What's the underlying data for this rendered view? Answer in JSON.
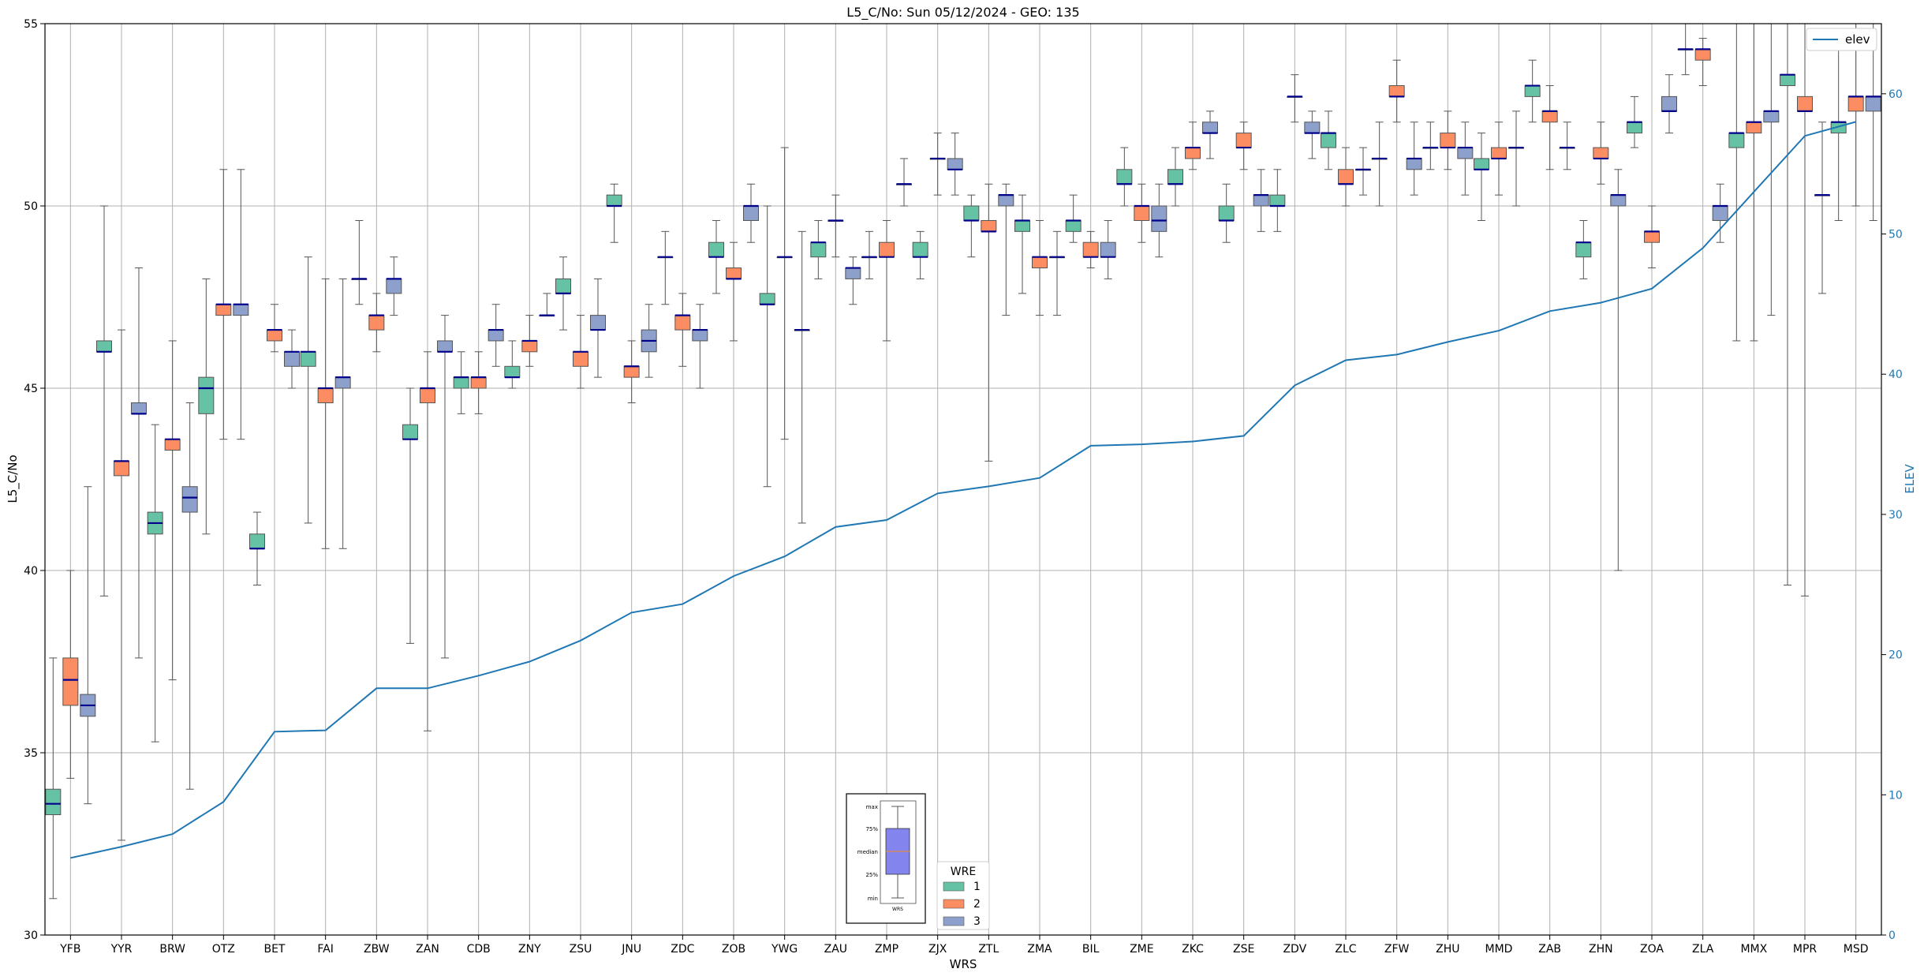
{
  "chart_data": {
    "type": "box",
    "title": "L5_C/No: Sun 05/12/2024 - GEO: 135",
    "xlabel": "WRS",
    "ylabel": "L5_C/No",
    "y2label": "ELEV",
    "ylim": [
      30,
      55
    ],
    "y2lim": [
      0,
      65
    ],
    "yticks": [
      30,
      35,
      40,
      45,
      50,
      55
    ],
    "y2ticks": [
      0,
      10,
      20,
      30,
      40,
      50,
      60
    ],
    "grid": true,
    "categories": [
      "YFB",
      "YYR",
      "BRW",
      "OTZ",
      "BET",
      "FAI",
      "ZBW",
      "ZAN",
      "CDB",
      "ZNY",
      "ZSU",
      "JNU",
      "ZDC",
      "ZOB",
      "YWG",
      "ZAU",
      "ZMP",
      "ZJX",
      "ZTL",
      "ZMA",
      "BIL",
      "ZME",
      "ZKC",
      "ZSE",
      "ZDV",
      "ZLC",
      "ZFW",
      "ZHU",
      "MMD",
      "ZAB",
      "ZHN",
      "ZOA",
      "ZLA",
      "MMX",
      "MPR",
      "MSD"
    ],
    "series_colors": {
      "1": "#66c2a5",
      "2": "#fc8d62",
      "3": "#8da0cb"
    },
    "legend": {
      "title": "WRE",
      "entries": [
        {
          "label": "1",
          "color": "#66c2a5"
        },
        {
          "label": "2",
          "color": "#fc8d62"
        },
        {
          "label": "3",
          "color": "#8da0cb"
        }
      ],
      "placement": "bottom-center"
    },
    "line_legend": {
      "label": "elev",
      "color": "#1f77b4",
      "placement": "top-right"
    },
    "key": {
      "labels": [
        "max",
        "75%",
        "median",
        "25%",
        "min"
      ],
      "xlabel": "WRS"
    },
    "elev": [
      5.5,
      6.3,
      7.2,
      9.5,
      14.5,
      14.6,
      17.6,
      17.6,
      18.5,
      19.5,
      21.0,
      23.0,
      23.6,
      25.6,
      27.0,
      29.1,
      29.6,
      31.5,
      32.0,
      32.6,
      34.9,
      35.0,
      35.2,
      35.6,
      39.2,
      41.0,
      41.4,
      42.3,
      43.1,
      44.5,
      45.1,
      46.1,
      49.0,
      53.0,
      57.0,
      58.0
    ],
    "boxes": [
      {
        "site": "YFB",
        "wre": 1,
        "min": 31.0,
        "q1": 33.3,
        "med": 33.6,
        "q3": 34.0,
        "max": 37.6
      },
      {
        "site": "YFB",
        "wre": 2,
        "min": 34.3,
        "q1": 36.3,
        "med": 37.0,
        "q3": 37.6,
        "max": 40.0
      },
      {
        "site": "YFB",
        "wre": 3,
        "min": 33.6,
        "q1": 36.0,
        "med": 36.3,
        "q3": 36.6,
        "max": 42.3
      },
      {
        "site": "YYR",
        "wre": 1,
        "min": 39.3,
        "q1": 46.0,
        "med": 46.0,
        "q3": 46.3,
        "max": 50.0
      },
      {
        "site": "YYR",
        "wre": 2,
        "min": 32.6,
        "q1": 42.6,
        "med": 43.0,
        "q3": 43.0,
        "max": 46.6
      },
      {
        "site": "YYR",
        "wre": 3,
        "min": 37.6,
        "q1": 44.3,
        "med": 44.3,
        "q3": 44.6,
        "max": 48.3
      },
      {
        "site": "BRW",
        "wre": 1,
        "min": 35.3,
        "q1": 41.0,
        "med": 41.3,
        "q3": 41.6,
        "max": 44.0
      },
      {
        "site": "BRW",
        "wre": 2,
        "min": 37.0,
        "q1": 43.3,
        "med": 43.6,
        "q3": 43.6,
        "max": 46.3
      },
      {
        "site": "BRW",
        "wre": 3,
        "min": 34.0,
        "q1": 41.6,
        "med": 42.0,
        "q3": 42.3,
        "max": 44.6
      },
      {
        "site": "OTZ",
        "wre": 1,
        "min": 41.0,
        "q1": 44.3,
        "med": 45.0,
        "q3": 45.3,
        "max": 48.0
      },
      {
        "site": "OTZ",
        "wre": 2,
        "min": 43.6,
        "q1": 47.0,
        "med": 47.3,
        "q3": 47.3,
        "max": 51.0
      },
      {
        "site": "OTZ",
        "wre": 3,
        "min": 43.6,
        "q1": 47.0,
        "med": 47.3,
        "q3": 47.3,
        "max": 51.0
      },
      {
        "site": "BET",
        "wre": 1,
        "min": 39.6,
        "q1": 40.6,
        "med": 40.6,
        "q3": 41.0,
        "max": 41.6
      },
      {
        "site": "BET",
        "wre": 2,
        "min": 46.0,
        "q1": 46.3,
        "med": 46.6,
        "q3": 46.6,
        "max": 47.3
      },
      {
        "site": "BET",
        "wre": 3,
        "min": 45.0,
        "q1": 45.6,
        "med": 46.0,
        "q3": 46.0,
        "max": 46.6
      },
      {
        "site": "FAI",
        "wre": 1,
        "min": 41.3,
        "q1": 45.6,
        "med": 46.0,
        "q3": 46.0,
        "max": 48.6
      },
      {
        "site": "FAI",
        "wre": 2,
        "min": 40.6,
        "q1": 44.6,
        "med": 45.0,
        "q3": 45.0,
        "max": 48.0
      },
      {
        "site": "FAI",
        "wre": 3,
        "min": 40.6,
        "q1": 45.0,
        "med": 45.3,
        "q3": 45.3,
        "max": 48.0
      },
      {
        "site": "ZBW",
        "wre": 1,
        "min": 47.3,
        "q1": 48.0,
        "med": 48.0,
        "q3": 48.0,
        "max": 49.6
      },
      {
        "site": "ZBW",
        "wre": 2,
        "min": 46.0,
        "q1": 46.6,
        "med": 47.0,
        "q3": 47.0,
        "max": 47.6
      },
      {
        "site": "ZBW",
        "wre": 3,
        "min": 47.0,
        "q1": 47.6,
        "med": 48.0,
        "q3": 48.0,
        "max": 48.6
      },
      {
        "site": "ZAN",
        "wre": 1,
        "min": 38.0,
        "q1": 43.6,
        "med": 43.6,
        "q3": 44.0,
        "max": 45.0
      },
      {
        "site": "ZAN",
        "wre": 2,
        "min": 35.6,
        "q1": 44.6,
        "med": 45.0,
        "q3": 45.0,
        "max": 46.0
      },
      {
        "site": "ZAN",
        "wre": 3,
        "min": 37.6,
        "q1": 46.0,
        "med": 46.0,
        "q3": 46.3,
        "max": 47.0
      },
      {
        "site": "CDB",
        "wre": 1,
        "min": 44.3,
        "q1": 45.0,
        "med": 45.3,
        "q3": 45.3,
        "max": 46.0
      },
      {
        "site": "CDB",
        "wre": 2,
        "min": 44.3,
        "q1": 45.0,
        "med": 45.3,
        "q3": 45.3,
        "max": 46.0
      },
      {
        "site": "CDB",
        "wre": 3,
        "min": 45.6,
        "q1": 46.3,
        "med": 46.6,
        "q3": 46.6,
        "max": 47.3
      },
      {
        "site": "ZNY",
        "wre": 1,
        "min": 45.0,
        "q1": 45.3,
        "med": 45.3,
        "q3": 45.6,
        "max": 46.3
      },
      {
        "site": "ZNY",
        "wre": 2,
        "min": 45.6,
        "q1": 46.0,
        "med": 46.3,
        "q3": 46.3,
        "max": 47.0
      },
      {
        "site": "ZNY",
        "wre": 3,
        "min": 47.0,
        "q1": 47.0,
        "med": 47.0,
        "q3": 47.0,
        "max": 47.6
      },
      {
        "site": "ZSU",
        "wre": 1,
        "min": 46.6,
        "q1": 47.6,
        "med": 47.6,
        "q3": 48.0,
        "max": 48.6
      },
      {
        "site": "ZSU",
        "wre": 2,
        "min": 45.0,
        "q1": 45.6,
        "med": 46.0,
        "q3": 46.0,
        "max": 47.0
      },
      {
        "site": "ZSU",
        "wre": 3,
        "min": 45.3,
        "q1": 46.6,
        "med": 46.6,
        "q3": 47.0,
        "max": 48.0
      },
      {
        "site": "JNU",
        "wre": 1,
        "min": 49.0,
        "q1": 50.0,
        "med": 50.0,
        "q3": 50.3,
        "max": 50.6
      },
      {
        "site": "JNU",
        "wre": 2,
        "min": 44.6,
        "q1": 45.3,
        "med": 45.6,
        "q3": 45.6,
        "max": 46.3
      },
      {
        "site": "JNU",
        "wre": 3,
        "min": 45.3,
        "q1": 46.0,
        "med": 46.3,
        "q3": 46.6,
        "max": 47.3
      },
      {
        "site": "ZDC",
        "wre": 1,
        "min": 47.3,
        "q1": 48.6,
        "med": 48.6,
        "q3": 48.6,
        "max": 49.3
      },
      {
        "site": "ZDC",
        "wre": 2,
        "min": 45.6,
        "q1": 46.6,
        "med": 47.0,
        "q3": 47.0,
        "max": 47.6
      },
      {
        "site": "ZDC",
        "wre": 3,
        "min": 45.0,
        "q1": 46.3,
        "med": 46.6,
        "q3": 46.6,
        "max": 47.3
      },
      {
        "site": "ZOB",
        "wre": 1,
        "min": 47.6,
        "q1": 48.6,
        "med": 48.6,
        "q3": 49.0,
        "max": 49.6
      },
      {
        "site": "ZOB",
        "wre": 2,
        "min": 46.3,
        "q1": 48.0,
        "med": 48.0,
        "q3": 48.3,
        "max": 49.0
      },
      {
        "site": "ZOB",
        "wre": 3,
        "min": 49.0,
        "q1": 49.6,
        "med": 50.0,
        "q3": 50.0,
        "max": 50.6
      },
      {
        "site": "YWG",
        "wre": 1,
        "min": 42.3,
        "q1": 47.3,
        "med": 47.3,
        "q3": 47.6,
        "max": 50.0
      },
      {
        "site": "YWG",
        "wre": 2,
        "min": 43.6,
        "q1": 48.6,
        "med": 48.6,
        "q3": 48.6,
        "max": 51.6
      },
      {
        "site": "YWG",
        "wre": 3,
        "min": 41.3,
        "q1": 46.6,
        "med": 46.6,
        "q3": 46.6,
        "max": 49.3
      },
      {
        "site": "ZAU",
        "wre": 1,
        "min": 48.0,
        "q1": 48.6,
        "med": 49.0,
        "q3": 49.0,
        "max": 49.6
      },
      {
        "site": "ZAU",
        "wre": 2,
        "min": 48.6,
        "q1": 49.6,
        "med": 49.6,
        "q3": 49.6,
        "max": 50.3
      },
      {
        "site": "ZAU",
        "wre": 3,
        "min": 47.3,
        "q1": 48.0,
        "med": 48.3,
        "q3": 48.3,
        "max": 48.6
      },
      {
        "site": "ZMP",
        "wre": 1,
        "min": 48.0,
        "q1": 48.6,
        "med": 48.6,
        "q3": 48.6,
        "max": 49.3
      },
      {
        "site": "ZMP",
        "wre": 2,
        "min": 46.3,
        "q1": 48.6,
        "med": 48.6,
        "q3": 49.0,
        "max": 49.6
      },
      {
        "site": "ZMP",
        "wre": 3,
        "min": 50.0,
        "q1": 50.6,
        "med": 50.6,
        "q3": 50.6,
        "max": 51.3
      },
      {
        "site": "ZJX",
        "wre": 1,
        "min": 48.0,
        "q1": 48.6,
        "med": 48.6,
        "q3": 49.0,
        "max": 49.3
      },
      {
        "site": "ZJX",
        "wre": 2,
        "min": 50.3,
        "q1": 51.3,
        "med": 51.3,
        "q3": 51.3,
        "max": 52.0
      },
      {
        "site": "ZJX",
        "wre": 3,
        "min": 50.3,
        "q1": 51.0,
        "med": 51.0,
        "q3": 51.3,
        "max": 52.0
      },
      {
        "site": "ZTL",
        "wre": 1,
        "min": 48.6,
        "q1": 49.6,
        "med": 49.6,
        "q3": 50.0,
        "max": 50.3
      },
      {
        "site": "ZTL",
        "wre": 2,
        "min": 43.0,
        "q1": 49.3,
        "med": 49.3,
        "q3": 49.6,
        "max": 50.6
      },
      {
        "site": "ZTL",
        "wre": 3,
        "min": 47.0,
        "q1": 50.0,
        "med": 50.3,
        "q3": 50.3,
        "max": 50.6
      },
      {
        "site": "ZMA",
        "wre": 1,
        "min": 47.6,
        "q1": 49.3,
        "med": 49.6,
        "q3": 49.6,
        "max": 50.3
      },
      {
        "site": "ZMA",
        "wre": 2,
        "min": 47.0,
        "q1": 48.3,
        "med": 48.6,
        "q3": 48.6,
        "max": 49.6
      },
      {
        "site": "ZMA",
        "wre": 3,
        "min": 47.0,
        "q1": 48.6,
        "med": 48.6,
        "q3": 48.6,
        "max": 49.3
      },
      {
        "site": "BIL",
        "wre": 1,
        "min": 49.0,
        "q1": 49.3,
        "med": 49.6,
        "q3": 49.6,
        "max": 50.3
      },
      {
        "site": "BIL",
        "wre": 2,
        "min": 48.3,
        "q1": 48.6,
        "med": 48.6,
        "q3": 49.0,
        "max": 49.3
      },
      {
        "site": "BIL",
        "wre": 3,
        "min": 48.0,
        "q1": 48.6,
        "med": 48.6,
        "q3": 49.0,
        "max": 49.6
      },
      {
        "site": "ZME",
        "wre": 1,
        "min": 50.0,
        "q1": 50.6,
        "med": 50.6,
        "q3": 51.0,
        "max": 51.6
      },
      {
        "site": "ZME",
        "wre": 2,
        "min": 49.0,
        "q1": 49.6,
        "med": 50.0,
        "q3": 50.0,
        "max": 50.6
      },
      {
        "site": "ZME",
        "wre": 3,
        "min": 48.6,
        "q1": 49.3,
        "med": 49.6,
        "q3": 50.0,
        "max": 50.6
      },
      {
        "site": "ZKC",
        "wre": 1,
        "min": 50.0,
        "q1": 50.6,
        "med": 50.6,
        "q3": 51.0,
        "max": 51.6
      },
      {
        "site": "ZKC",
        "wre": 2,
        "min": 51.0,
        "q1": 51.3,
        "med": 51.6,
        "q3": 51.6,
        "max": 52.3
      },
      {
        "site": "ZKC",
        "wre": 3,
        "min": 51.3,
        "q1": 52.0,
        "med": 52.0,
        "q3": 52.3,
        "max": 52.6
      },
      {
        "site": "ZSE",
        "wre": 1,
        "min": 49.0,
        "q1": 49.6,
        "med": 49.6,
        "q3": 50.0,
        "max": 50.6
      },
      {
        "site": "ZSE",
        "wre": 2,
        "min": 51.0,
        "q1": 51.6,
        "med": 51.6,
        "q3": 52.0,
        "max": 52.3
      },
      {
        "site": "ZSE",
        "wre": 3,
        "min": 49.3,
        "q1": 50.0,
        "med": 50.3,
        "q3": 50.3,
        "max": 51.0
      },
      {
        "site": "ZDV",
        "wre": 1,
        "min": 49.3,
        "q1": 50.0,
        "med": 50.0,
        "q3": 50.3,
        "max": 51.0
      },
      {
        "site": "ZDV",
        "wre": 2,
        "min": 52.3,
        "q1": 53.0,
        "med": 53.0,
        "q3": 53.0,
        "max": 53.6
      },
      {
        "site": "ZDV",
        "wre": 3,
        "min": 51.3,
        "q1": 52.0,
        "med": 52.0,
        "q3": 52.3,
        "max": 52.6
      },
      {
        "site": "ZLC",
        "wre": 1,
        "min": 51.0,
        "q1": 51.6,
        "med": 52.0,
        "q3": 52.0,
        "max": 52.6
      },
      {
        "site": "ZLC",
        "wre": 2,
        "min": 50.0,
        "q1": 50.6,
        "med": 50.6,
        "q3": 51.0,
        "max": 51.6
      },
      {
        "site": "ZLC",
        "wre": 3,
        "min": 50.3,
        "q1": 51.0,
        "med": 51.0,
        "q3": 51.0,
        "max": 51.6
      },
      {
        "site": "ZFW",
        "wre": 1,
        "min": 50.0,
        "q1": 51.3,
        "med": 51.3,
        "q3": 51.3,
        "max": 52.3
      },
      {
        "site": "ZFW",
        "wre": 2,
        "min": 52.3,
        "q1": 53.0,
        "med": 53.0,
        "q3": 53.3,
        "max": 54.0
      },
      {
        "site": "ZFW",
        "wre": 3,
        "min": 50.3,
        "q1": 51.0,
        "med": 51.3,
        "q3": 51.3,
        "max": 52.3
      },
      {
        "site": "ZHU",
        "wre": 1,
        "min": 51.0,
        "q1": 51.6,
        "med": 51.6,
        "q3": 51.6,
        "max": 52.3
      },
      {
        "site": "ZHU",
        "wre": 2,
        "min": 51.0,
        "q1": 51.6,
        "med": 51.6,
        "q3": 52.0,
        "max": 52.6
      },
      {
        "site": "ZHU",
        "wre": 3,
        "min": 50.3,
        "q1": 51.3,
        "med": 51.6,
        "q3": 51.6,
        "max": 52.3
      },
      {
        "site": "MMD",
        "wre": 1,
        "min": 49.6,
        "q1": 51.0,
        "med": 51.0,
        "q3": 51.3,
        "max": 52.0
      },
      {
        "site": "MMD",
        "wre": 2,
        "min": 50.3,
        "q1": 51.3,
        "med": 51.3,
        "q3": 51.6,
        "max": 52.3
      },
      {
        "site": "MMD",
        "wre": 3,
        "min": 50.0,
        "q1": 51.6,
        "med": 51.6,
        "q3": 51.6,
        "max": 52.6
      },
      {
        "site": "ZAB",
        "wre": 1,
        "min": 52.3,
        "q1": 53.0,
        "med": 53.3,
        "q3": 53.3,
        "max": 54.0
      },
      {
        "site": "ZAB",
        "wre": 2,
        "min": 51.0,
        "q1": 52.3,
        "med": 52.6,
        "q3": 52.6,
        "max": 53.3
      },
      {
        "site": "ZAB",
        "wre": 3,
        "min": 51.0,
        "q1": 51.6,
        "med": 51.6,
        "q3": 51.6,
        "max": 52.3
      },
      {
        "site": "ZHN",
        "wre": 1,
        "min": 48.0,
        "q1": 48.6,
        "med": 49.0,
        "q3": 49.0,
        "max": 49.6
      },
      {
        "site": "ZHN",
        "wre": 2,
        "min": 50.6,
        "q1": 51.3,
        "med": 51.3,
        "q3": 51.6,
        "max": 52.3
      },
      {
        "site": "ZHN",
        "wre": 3,
        "min": 40.0,
        "q1": 50.0,
        "med": 50.3,
        "q3": 50.3,
        "max": 51.0
      },
      {
        "site": "ZOA",
        "wre": 1,
        "min": 51.6,
        "q1": 52.0,
        "med": 52.3,
        "q3": 52.3,
        "max": 53.0
      },
      {
        "site": "ZOA",
        "wre": 2,
        "min": 48.3,
        "q1": 49.0,
        "med": 49.3,
        "q3": 49.3,
        "max": 50.0
      },
      {
        "site": "ZOA",
        "wre": 3,
        "min": 52.0,
        "q1": 52.6,
        "med": 52.6,
        "q3": 53.0,
        "max": 53.6
      },
      {
        "site": "ZLA",
        "wre": 1,
        "min": 53.6,
        "q1": 54.3,
        "med": 54.3,
        "q3": 54.3,
        "max": 55.0
      },
      {
        "site": "ZLA",
        "wre": 2,
        "min": 53.3,
        "q1": 54.0,
        "med": 54.3,
        "q3": 54.3,
        "max": 54.6
      },
      {
        "site": "ZLA",
        "wre": 3,
        "min": 49.0,
        "q1": 49.6,
        "med": 50.0,
        "q3": 50.0,
        "max": 50.6
      },
      {
        "site": "MMX",
        "wre": 1,
        "min": 46.3,
        "q1": 51.6,
        "med": 52.0,
        "q3": 52.0,
        "max": 55.0
      },
      {
        "site": "MMX",
        "wre": 2,
        "min": 46.3,
        "q1": 52.0,
        "med": 52.3,
        "q3": 52.3,
        "max": 55.0
      },
      {
        "site": "MMX",
        "wre": 3,
        "min": 47.0,
        "q1": 52.3,
        "med": 52.6,
        "q3": 52.6,
        "max": 55.0
      },
      {
        "site": "MPR",
        "wre": 1,
        "min": 39.6,
        "q1": 53.3,
        "med": 53.6,
        "q3": 53.6,
        "max": 55.0
      },
      {
        "site": "MPR",
        "wre": 2,
        "min": 39.3,
        "q1": 52.6,
        "med": 52.6,
        "q3": 53.0,
        "max": 55.0
      },
      {
        "site": "MPR",
        "wre": 3,
        "min": 47.6,
        "q1": 50.3,
        "med": 50.3,
        "q3": 50.3,
        "max": 52.3
      },
      {
        "site": "MSD",
        "wre": 1,
        "min": 49.6,
        "q1": 52.0,
        "med": 52.3,
        "q3": 52.3,
        "max": 54.3
      },
      {
        "site": "MSD",
        "wre": 2,
        "min": 50.0,
        "q1": 52.6,
        "med": 53.0,
        "q3": 53.0,
        "max": 55.0
      },
      {
        "site": "MSD",
        "wre": 3,
        "min": 49.6,
        "q1": 52.6,
        "med": 53.0,
        "q3": 53.0,
        "max": 55.0
      }
    ]
  }
}
